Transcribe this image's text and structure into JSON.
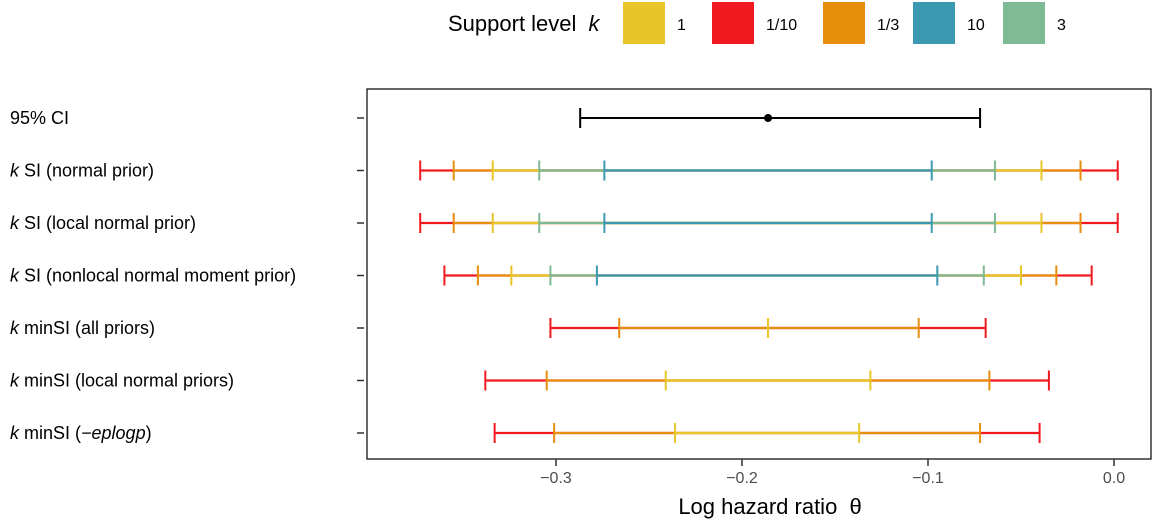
{
  "chart_data": {
    "type": "interval",
    "xlabel": "Log hazard ratio",
    "xlabel_symbol": "θ",
    "xlim": [
      -0.39,
      0.01
    ],
    "xticks": [
      {
        "value": -0.3,
        "label": "−0.3"
      },
      {
        "value": -0.2,
        "label": "−0.2"
      },
      {
        "value": -0.1,
        "label": "−0.1"
      },
      {
        "value": 0.0,
        "label": "0.0"
      }
    ],
    "legend": {
      "title": "Support level",
      "title_symbol": "k",
      "position": "top",
      "entries": [
        {
          "label": "1",
          "color": "#E8C62A"
        },
        {
          "label": "1/10",
          "color": "#F0191F"
        },
        {
          "label": "1/3",
          "color": "#E88E0D"
        },
        {
          "label": "10",
          "color": "#3B99B2"
        },
        {
          "label": "3",
          "color": "#7EBA93"
        }
      ]
    },
    "rows": [
      {
        "prefix": "",
        "label": "95% CI",
        "type": "ci",
        "color": "#000000",
        "lower": -0.287,
        "upper": -0.072,
        "estimate": -0.186
      },
      {
        "prefix": "k",
        "label": "SI (normal prior)",
        "type": "si",
        "intervals": [
          {
            "level": "1/10",
            "lower": -0.373,
            "upper": 0.002
          },
          {
            "level": "1/3",
            "lower": -0.355,
            "upper": -0.018
          },
          {
            "level": "1",
            "lower": -0.334,
            "upper": -0.039
          },
          {
            "level": "3",
            "lower": -0.309,
            "upper": -0.064
          },
          {
            "level": "10",
            "lower": -0.274,
            "upper": -0.098
          }
        ]
      },
      {
        "prefix": "k",
        "label": "SI (local normal prior)",
        "type": "si",
        "intervals": [
          {
            "level": "1/10",
            "lower": -0.373,
            "upper": 0.002
          },
          {
            "level": "1/3",
            "lower": -0.355,
            "upper": -0.018
          },
          {
            "level": "1",
            "lower": -0.334,
            "upper": -0.039
          },
          {
            "level": "3",
            "lower": -0.309,
            "upper": -0.064
          },
          {
            "level": "10",
            "lower": -0.274,
            "upper": -0.098
          }
        ]
      },
      {
        "prefix": "k",
        "label": "SI (nonlocal normal moment prior)",
        "type": "si",
        "intervals": [
          {
            "level": "1/10",
            "lower": -0.36,
            "upper": -0.012
          },
          {
            "level": "1/3",
            "lower": -0.342,
            "upper": -0.031
          },
          {
            "level": "1",
            "lower": -0.324,
            "upper": -0.05
          },
          {
            "level": "3",
            "lower": -0.303,
            "upper": -0.07
          },
          {
            "level": "10",
            "lower": -0.278,
            "upper": -0.095
          }
        ]
      },
      {
        "prefix": "k",
        "label": "minSI (all priors)",
        "type": "si",
        "intervals": [
          {
            "level": "1/10",
            "lower": -0.303,
            "upper": -0.069
          },
          {
            "level": "1/3",
            "lower": -0.266,
            "upper": -0.105
          },
          {
            "level": "1",
            "lower": -0.186,
            "upper": -0.186
          }
        ]
      },
      {
        "prefix": "k",
        "label": "minSI (local normal priors)",
        "type": "si",
        "intervals": [
          {
            "level": "1/10",
            "lower": -0.338,
            "upper": -0.035
          },
          {
            "level": "1/3",
            "lower": -0.305,
            "upper": -0.067
          },
          {
            "level": "1",
            "lower": -0.241,
            "upper": -0.131
          }
        ]
      },
      {
        "prefix": "k",
        "label": "minSI (",
        "label_math": "−eplogp",
        "label_end": ")",
        "type": "si",
        "intervals": [
          {
            "level": "1/10",
            "lower": -0.333,
            "upper": -0.04
          },
          {
            "level": "1/3",
            "lower": -0.301,
            "upper": -0.072
          },
          {
            "level": "1",
            "lower": -0.236,
            "upper": -0.137
          }
        ]
      }
    ]
  }
}
